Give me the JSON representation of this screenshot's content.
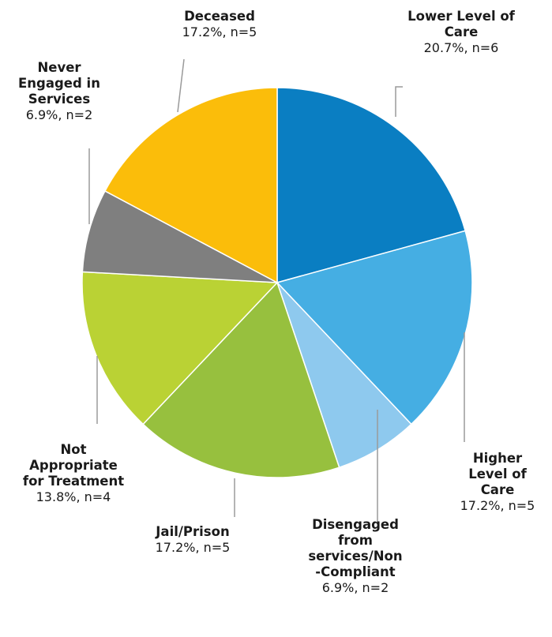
{
  "chart_data": {
    "type": "pie",
    "title": "",
    "start": "12 o'clock",
    "direction": "clockwise",
    "slices": [
      {
        "label_lines": [
          "Lower Level of",
          "Care"
        ],
        "percent": 20.7,
        "n": 6,
        "value_label": "20.7%, n=6",
        "color": "#0a7ec2"
      },
      {
        "label_lines": [
          "Higher",
          "Level of",
          "Care"
        ],
        "percent": 17.2,
        "n": 5,
        "value_label": "17.2%, n=5",
        "color": "#45aee3"
      },
      {
        "label_lines": [
          "Disengaged",
          "from",
          "services/Non",
          "-Compliant"
        ],
        "percent": 6.9,
        "n": 2,
        "value_label": "6.9%, n=2",
        "color": "#8ec9ee"
      },
      {
        "label_lines": [
          "Jail/Prison"
        ],
        "percent": 17.2,
        "n": 5,
        "value_label": "17.2%, n=5",
        "color": "#97c03e"
      },
      {
        "label_lines": [
          "Not",
          "Appropriate",
          "for Treatment"
        ],
        "percent": 13.8,
        "n": 4,
        "value_label": "13.8%, n=4",
        "color": "#bad234"
      },
      {
        "label_lines": [
          "Never",
          "Engaged in",
          "Services"
        ],
        "percent": 6.9,
        "n": 2,
        "value_label": "6.9%, n=2",
        "color": "#7f7f7f"
      },
      {
        "label_lines": [
          "Deceased"
        ],
        "percent": 17.2,
        "n": 5,
        "value_label": "17.2%, n=5",
        "color": "#fbbd0a"
      }
    ]
  }
}
